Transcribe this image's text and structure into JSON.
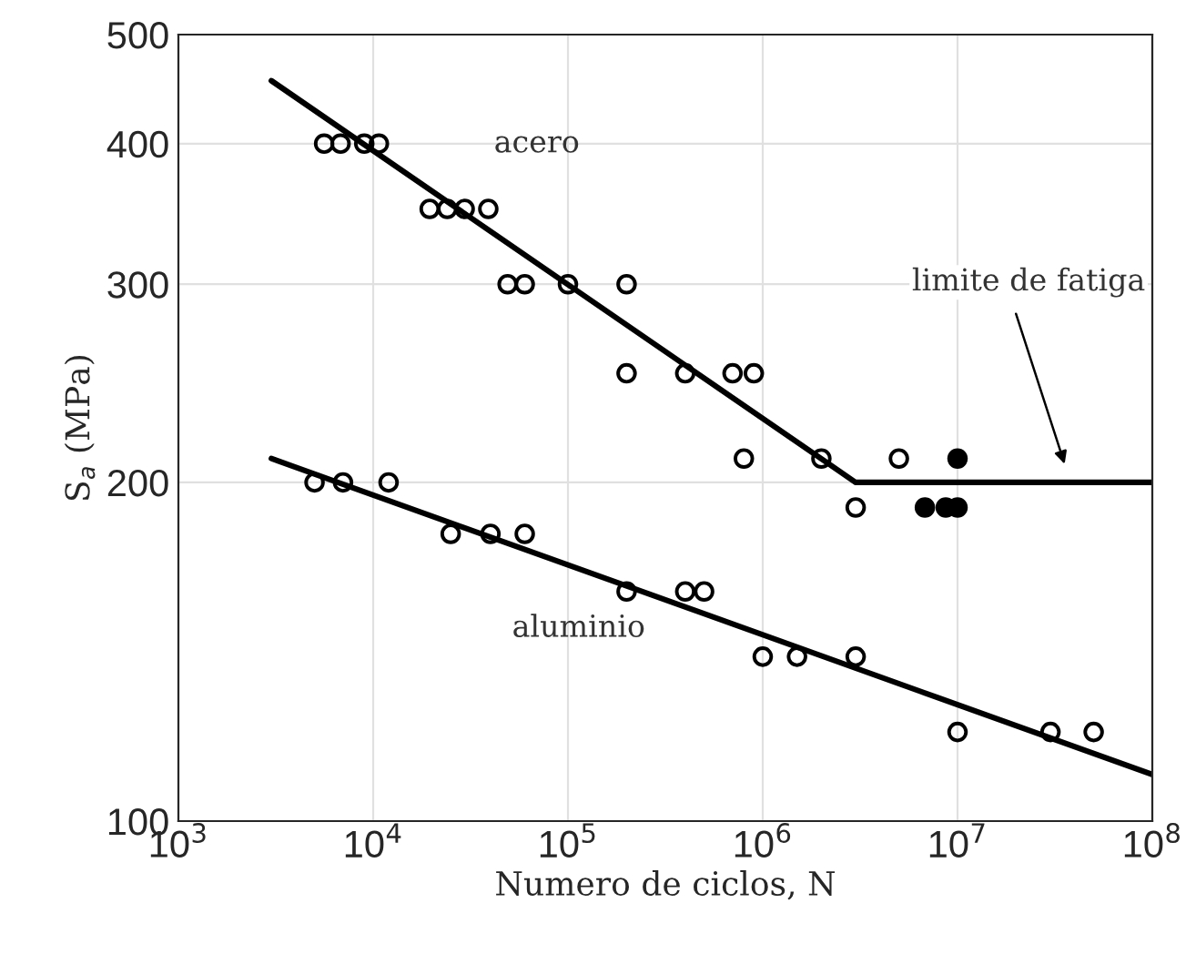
{
  "chart_data": {
    "type": "scatter",
    "xlabel": "Numero de ciclos, N",
    "ylabel": "S$_{a}$ (MPa)",
    "log": "xy",
    "grid": true,
    "legend": false,
    "xlim": [
      1000,
      100000000
    ],
    "ylim": [
      100,
      500
    ],
    "xticks": [
      {
        "value": 1000,
        "label": "10$^{3}$"
      },
      {
        "value": 10000,
        "label": "10$^{4}$"
      },
      {
        "value": 100000,
        "label": "10$^{5}$"
      },
      {
        "value": 1000000,
        "label": "10$^{6}$"
      },
      {
        "value": 10000000,
        "label": "10$^{7}$"
      },
      {
        "value": 100000000,
        "label": "10$^{8}$"
      }
    ],
    "yticks": [
      100,
      200,
      300,
      400,
      500
    ],
    "series": [
      {
        "marker": "circle",
        "x": [
          5600,
          6800,
          9000,
          10700,
          19500,
          24000,
          29500,
          39000,
          49000,
          60000,
          100000,
          200000,
          200000,
          400000,
          700000,
          900000,
          800000,
          2000000,
          5000000,
          3000000
        ],
        "values": [
          400,
          400,
          400,
          400,
          350,
          350,
          350,
          350,
          300,
          300,
          300,
          300,
          250,
          250,
          250,
          250,
          210,
          210,
          210,
          190
        ]
      },
      {
        "marker": "circle",
        "color": "#000000",
        "x": [
          10000000,
          6800000,
          8700000,
          10000000
        ],
        "values": [
          210,
          190,
          190,
          190
        ]
      },
      {
        "marker": "circle",
        "x": [
          5000,
          7000,
          12000,
          25000,
          40000,
          60000,
          200000,
          400000,
          500000,
          1000000,
          1500000,
          3000000,
          10000000,
          30000000,
          50000000
        ],
        "values": [
          200,
          200,
          200,
          180,
          180,
          180,
          160,
          160,
          160,
          140,
          140,
          140,
          120,
          120,
          120
        ]
      },
      {
        "type": "line",
        "marker": "none",
        "color": "#000000",
        "x": [
          3000,
          3000000,
          100000000
        ],
        "values": [
          455,
          200,
          200
        ]
      },
      {
        "type": "line",
        "marker": "none",
        "color": "#000000",
        "x": [
          3000,
          100000000
        ],
        "values": [
          210,
          110
        ]
      }
    ],
    "annotations": [
      "acero",
      "aluminio",
      "limite de fatiga"
    ]
  }
}
